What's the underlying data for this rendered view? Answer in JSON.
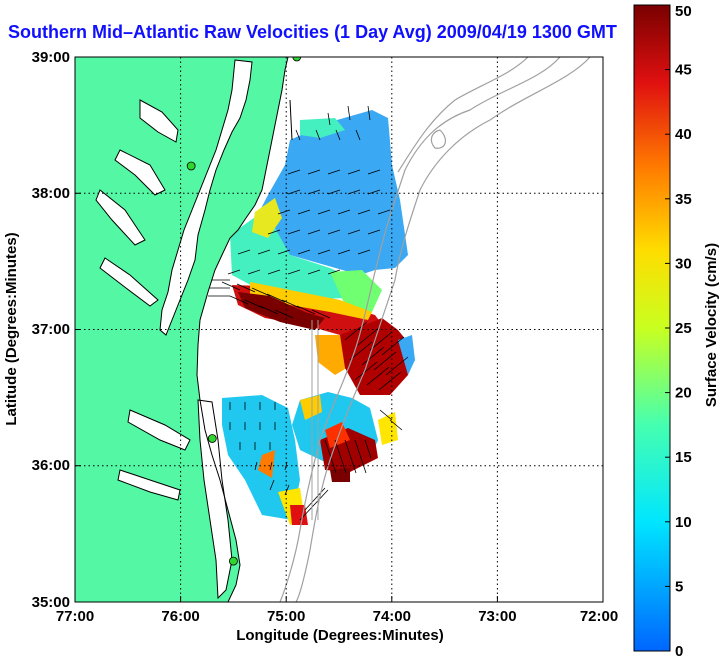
{
  "title": "Southern Mid–Atlantic Raw Velocities (1 Day Avg) 2009/04/19 1300 GMT",
  "axes": {
    "xlabel": "Longitude (Degrees:Minutes)",
    "ylabel": "Latitude (Degrees:Minutes)",
    "x_ticks": [
      "77:00",
      "76:00",
      "75:00",
      "74:00",
      "73:00",
      "72:00"
    ],
    "y_ticks": [
      "39:00",
      "38:00",
      "37:00",
      "36:00",
      "35:00"
    ],
    "xlim": [
      -77,
      -72
    ],
    "ylim": [
      35,
      39
    ],
    "grid": true
  },
  "colorbar": {
    "label": "Surface Velocity (cm/s)",
    "min": 0,
    "max": 50,
    "ticks": [
      "50",
      "45",
      "40",
      "35",
      "30",
      "25",
      "20",
      "15",
      "10",
      "5",
      "0"
    ]
  },
  "colors": {
    "land": "#54f7a4",
    "title": "#1010ff",
    "station": "#2fd62f"
  },
  "stations": [
    {
      "lon": -74.9,
      "lat": 39.0
    },
    {
      "lon": -75.9,
      "lat": 38.2
    },
    {
      "lon": -75.7,
      "lat": 36.2
    },
    {
      "lon": -75.5,
      "lat": 35.3
    }
  ]
}
